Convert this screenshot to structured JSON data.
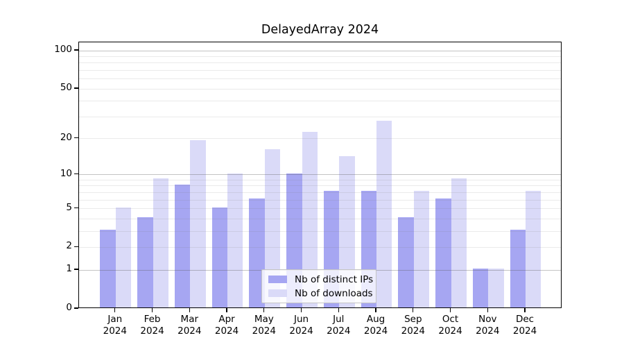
{
  "title": "DelayedArray 2024",
  "chart_data": {
    "type": "bar",
    "title": "DelayedArray 2024",
    "categories": [
      "Jan 2024",
      "Feb 2024",
      "Mar 2024",
      "Apr 2024",
      "May 2024",
      "Jun 2024",
      "Jul 2024",
      "Aug 2024",
      "Sep 2024",
      "Oct 2024",
      "Nov 2024",
      "Dec 2024"
    ],
    "series": [
      {
        "name": "Nb of distinct IPs",
        "color": "#a6a6f2",
        "values": [
          3,
          4,
          8,
          5,
          6,
          10,
          7,
          7,
          4,
          6,
          1,
          3
        ]
      },
      {
        "name": "Nb of downloads",
        "color": "#dadaf8",
        "values": [
          5,
          9,
          19,
          10,
          16,
          22,
          14,
          27,
          7,
          9,
          1,
          7
        ]
      }
    ],
    "y_ticks": [
      0,
      1,
      2,
      5,
      10,
      20,
      50,
      100
    ],
    "y_scale": "log1p",
    "ylim": [
      0,
      117
    ],
    "xlabel": "",
    "ylabel": "",
    "grid": "horizontal, log minors at 2-9 and 20-90, majors at 1/10/100",
    "legend_position": "bottom-center"
  },
  "colors": {
    "background": "#ffffff",
    "axis": "#000000",
    "bar_distinct_ips": "#a6a6f2",
    "bar_downloads": "#dadaf8",
    "gridline_minor": "#eaeaea",
    "gridline_major": "#c4c4c4"
  }
}
